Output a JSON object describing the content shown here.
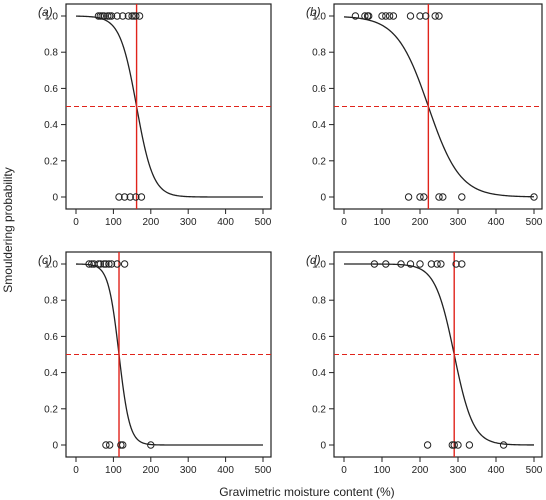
{
  "figure": {
    "ylabel": "Smouldering probability",
    "xlabel": "Gravimetric moisture content (%)"
  },
  "colors": {
    "curve": "#222222",
    "threshold_line": "#e0231b",
    "p50_line": "#e0231b",
    "points": "#222222",
    "frame": "#222222"
  },
  "chart_data": [
    {
      "type": "scatter",
      "panel": "(a)",
      "xlim": [
        0,
        500
      ],
      "ylim": [
        0,
        1
      ],
      "xticks": [
        0,
        100,
        200,
        300,
        400,
        500
      ],
      "yticks": [
        "0",
        "0.2",
        "0.4",
        "0.6",
        "0.8",
        "1.0"
      ],
      "curve": {
        "name": "logistic fit",
        "midpoint": 162,
        "slope": 0.045
      },
      "threshold_x": 162,
      "reference_y": 0.5,
      "points_y1": [
        60,
        65,
        70,
        75,
        85,
        90,
        95,
        110,
        125,
        140,
        150,
        155,
        160,
        170
      ],
      "points_y0": [
        115,
        130,
        145,
        160,
        175
      ]
    },
    {
      "type": "scatter",
      "panel": "(b)",
      "xlim": [
        0,
        500
      ],
      "ylim": [
        0,
        1
      ],
      "xticks": [
        0,
        100,
        200,
        300,
        400,
        500
      ],
      "yticks": [
        "0",
        "0.2",
        "0.4",
        "0.6",
        "0.8",
        "1.0"
      ],
      "curve": {
        "name": "logistic fit",
        "midpoint": 222,
        "slope": 0.024
      },
      "threshold_x": 222,
      "reference_y": 0.5,
      "points_y1": [
        30,
        55,
        62,
        65,
        100,
        110,
        120,
        130,
        175,
        200,
        215,
        240,
        250
      ],
      "points_y0": [
        170,
        200,
        210,
        250,
        260,
        310,
        500
      ]
    },
    {
      "type": "scatter",
      "panel": "(c)",
      "xlim": [
        0,
        500
      ],
      "ylim": [
        0,
        1
      ],
      "xticks": [
        0,
        100,
        200,
        300,
        400,
        500
      ],
      "yticks": [
        "0",
        "0.2",
        "0.4",
        "0.6",
        "0.8",
        "1.0"
      ],
      "curve": {
        "name": "logistic fit",
        "midpoint": 115,
        "slope": 0.07
      },
      "threshold_x": 115,
      "reference_y": 0.5,
      "points_y1": [
        35,
        42,
        48,
        60,
        65,
        75,
        80,
        88,
        95,
        110,
        130
      ],
      "points_y0": [
        80,
        90,
        120,
        125,
        200
      ]
    },
    {
      "type": "scatter",
      "panel": "(d)",
      "xlim": [
        0,
        500
      ],
      "ylim": [
        0,
        1
      ],
      "xticks": [
        0,
        100,
        200,
        300,
        400,
        500
      ],
      "yticks": [
        "0",
        "0.2",
        "0.4",
        "0.6",
        "0.8",
        "1.0"
      ],
      "curve": {
        "name": "logistic fit",
        "midpoint": 290,
        "slope": 0.04
      },
      "threshold_x": 290,
      "reference_y": 0.5,
      "points_y1": [
        80,
        110,
        150,
        175,
        200,
        230,
        245,
        255,
        295,
        310
      ],
      "points_y0": [
        220,
        285,
        290,
        300,
        330,
        420
      ]
    }
  ]
}
